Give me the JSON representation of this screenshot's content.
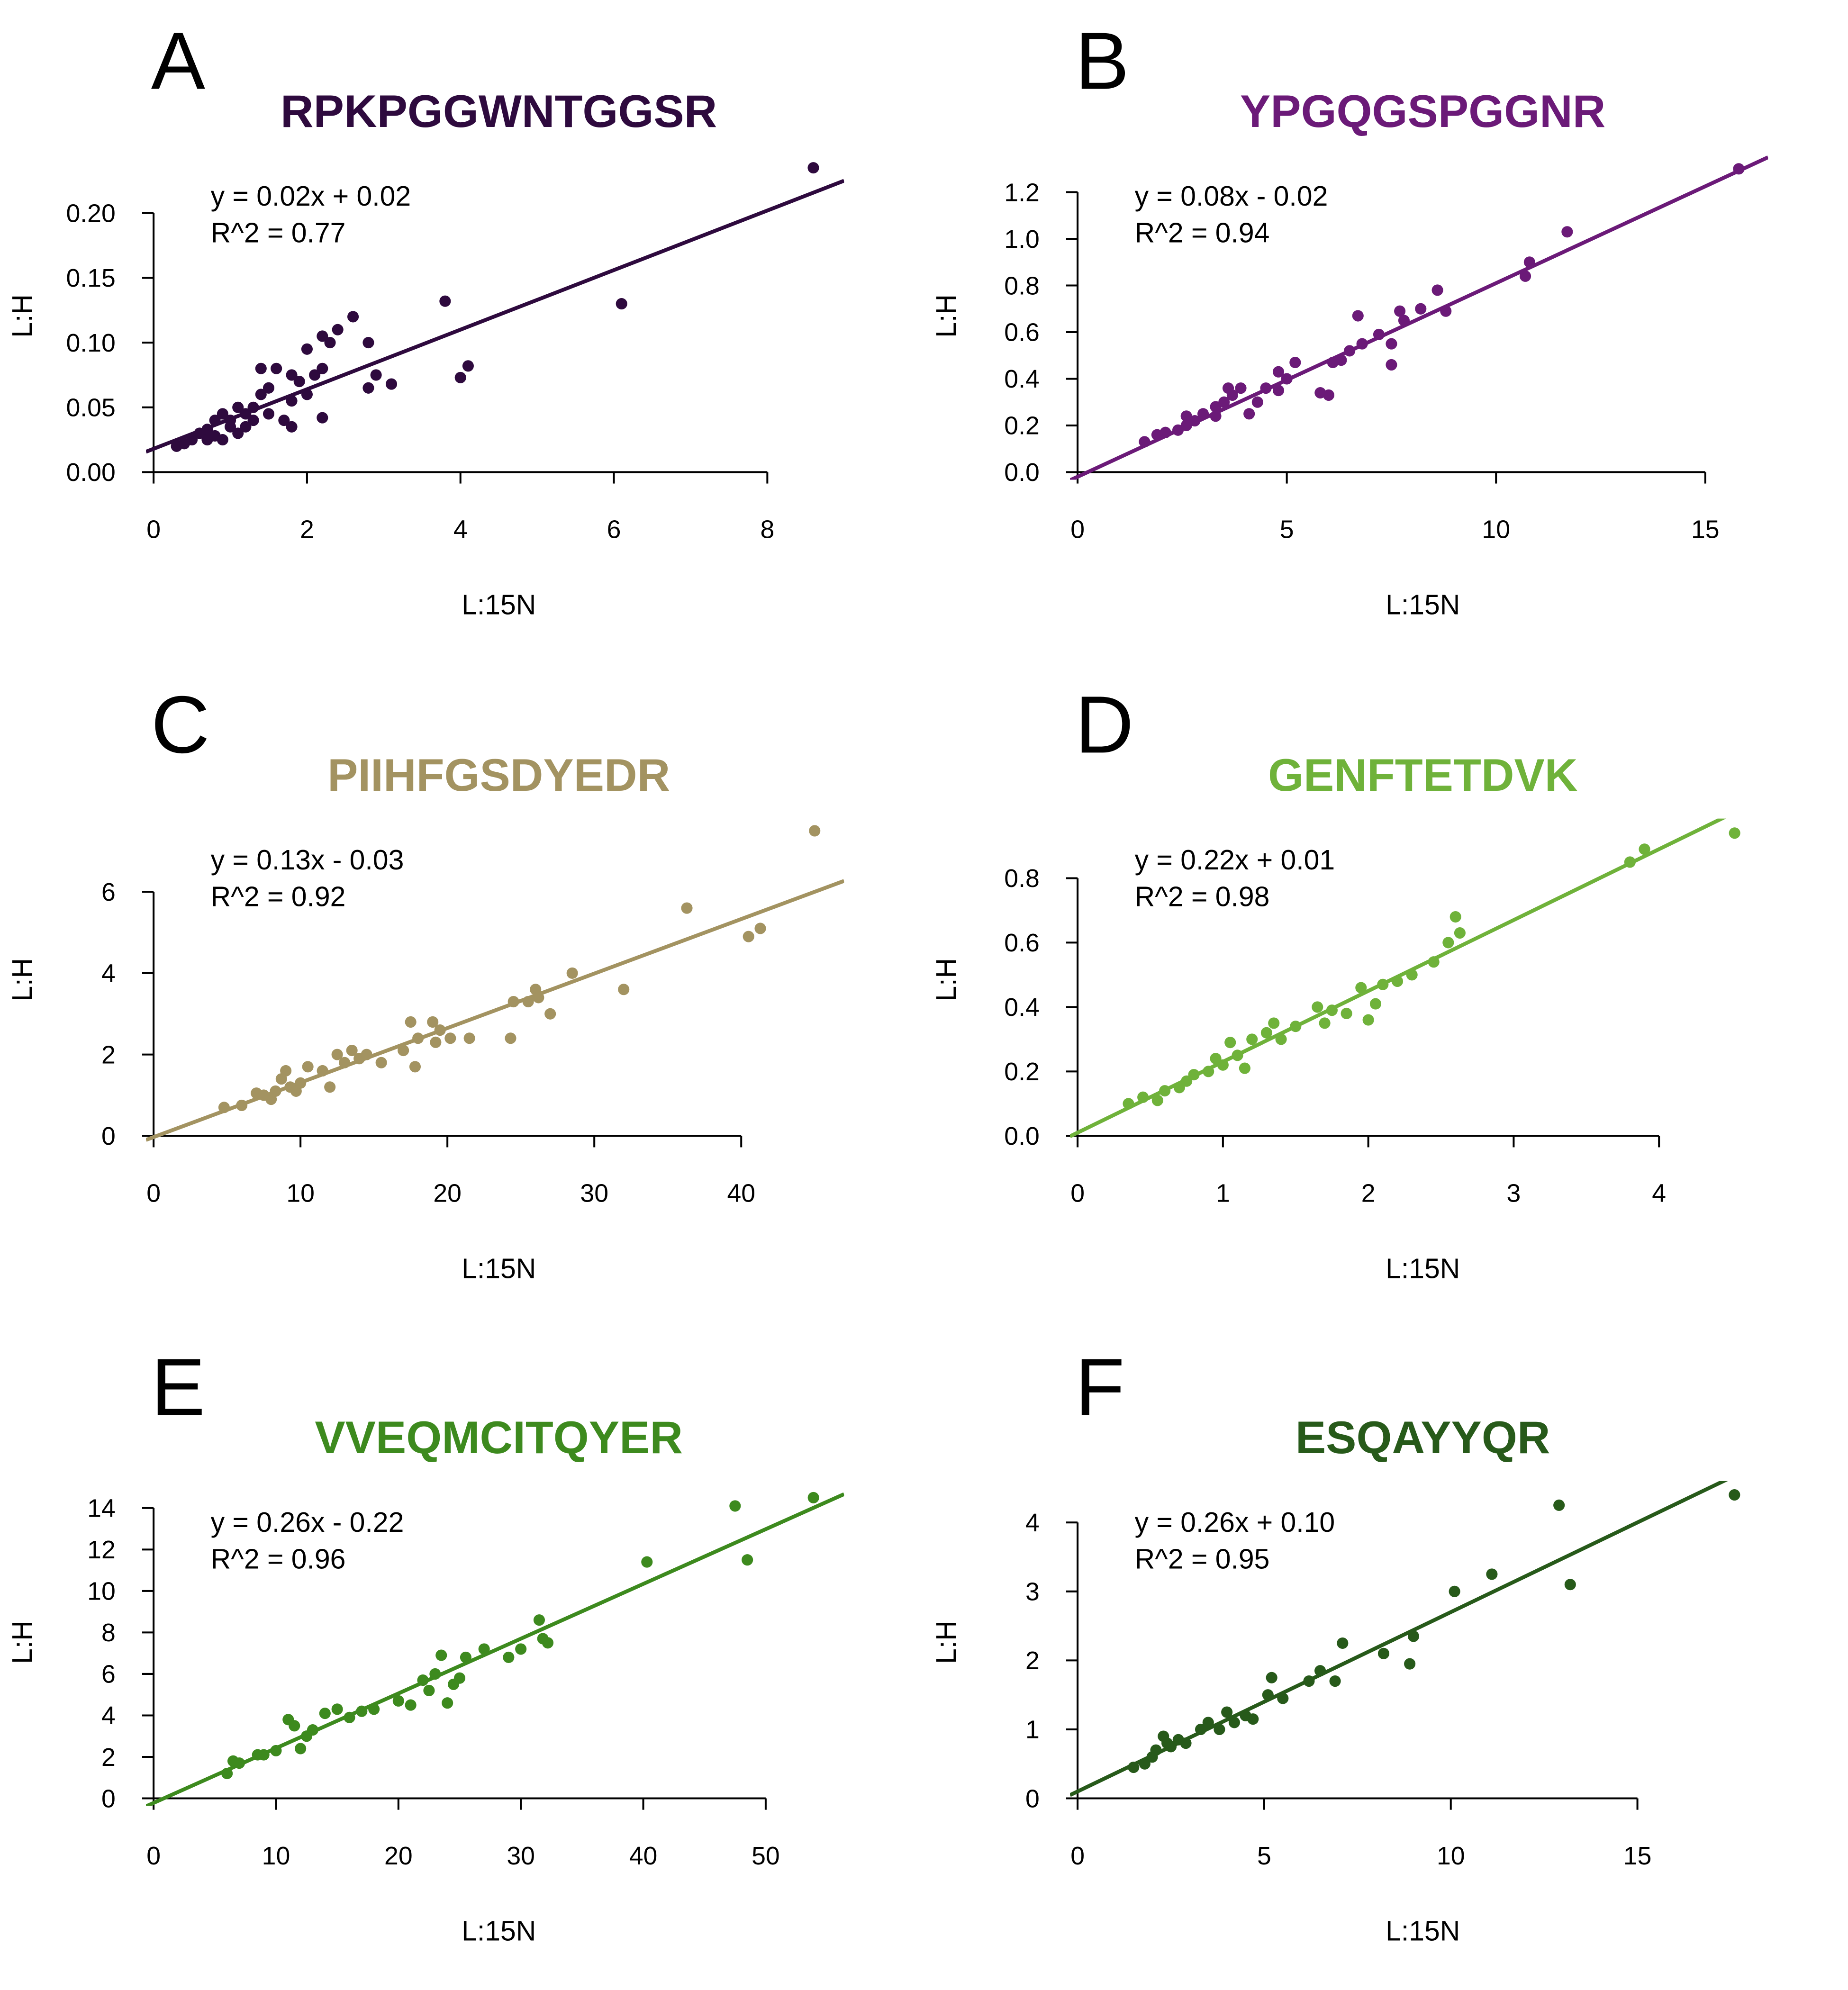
{
  "chart_data": [
    {
      "type": "scatter",
      "panel": "A",
      "title": "RPKPGGWNTGGSR",
      "equation": "y = 0.02x + 0.02",
      "r_squared": "R^2 = 0.77",
      "x_label": "L:15N",
      "y_label": "L:H",
      "color": "#2e0a3e",
      "fit": {
        "slope": 0.023,
        "intercept": 0.018
      },
      "x": [
        0.3,
        0.4,
        0.5,
        0.6,
        0.7,
        0.7,
        0.8,
        0.8,
        0.9,
        0.9,
        1.0,
        1.0,
        1.1,
        1.1,
        1.2,
        1.2,
        1.3,
        1.3,
        1.4,
        1.4,
        1.5,
        1.5,
        1.6,
        1.7,
        1.8,
        1.8,
        1.8,
        1.9,
        2.0,
        2.0,
        2.1,
        2.2,
        2.2,
        2.2,
        2.3,
        2.4,
        2.6,
        2.8,
        2.8,
        2.9,
        3.1,
        3.8,
        4.0,
        4.1,
        6.1,
        8.6
      ],
      "values": [
        0.02,
        0.022,
        0.025,
        0.03,
        0.025,
        0.033,
        0.04,
        0.028,
        0.045,
        0.025,
        0.035,
        0.04,
        0.05,
        0.03,
        0.045,
        0.035,
        0.05,
        0.04,
        0.08,
        0.06,
        0.065,
        0.045,
        0.08,
        0.04,
        0.055,
        0.075,
        0.035,
        0.07,
        0.095,
        0.06,
        0.075,
        0.105,
        0.08,
        0.042,
        0.1,
        0.11,
        0.12,
        0.1,
        0.065,
        0.075,
        0.068,
        0.132,
        0.073,
        0.082,
        0.13,
        0.235
      ],
      "xlim": [
        0,
        9
      ],
      "ylim": [
        0,
        0.245
      ],
      "xticks": [
        0,
        2,
        4,
        6,
        8
      ],
      "yticks": [
        {
          "value": 0,
          "label": "0.00"
        },
        0.05,
        {
          "value": 0.1,
          "label": "0.10"
        },
        0.15,
        {
          "value": 0.2,
          "label": "0.20"
        }
      ]
    },
    {
      "type": "scatter",
      "panel": "B",
      "title": "YPGQGSPGGNR",
      "equation": "y = 0.08x - 0.02",
      "r_squared": "R^2 = 0.94",
      "x_label": "L:15N",
      "y_label": "L:H",
      "color": "#6b1a78",
      "fit": {
        "slope": 0.083,
        "intercept": -0.02
      },
      "x": [
        1.6,
        1.9,
        2.1,
        2.4,
        2.6,
        2.6,
        2.8,
        3.0,
        3.3,
        3.3,
        3.5,
        3.6,
        3.7,
        3.9,
        4.1,
        4.3,
        4.5,
        4.8,
        4.8,
        5.0,
        5.2,
        5.8,
        6.0,
        6.1,
        6.3,
        6.5,
        6.7,
        6.8,
        7.2,
        7.5,
        7.5,
        7.7,
        7.8,
        8.2,
        8.6,
        8.8,
        10.7,
        10.8,
        11.7,
        15.8
      ],
      "values": [
        0.13,
        0.16,
        0.17,
        0.18,
        0.24,
        0.2,
        0.22,
        0.25,
        0.28,
        0.24,
        0.3,
        0.36,
        0.33,
        0.36,
        0.25,
        0.3,
        0.36,
        0.43,
        0.35,
        0.4,
        0.47,
        0.34,
        0.33,
        0.47,
        0.48,
        0.52,
        0.67,
        0.55,
        0.59,
        0.55,
        0.46,
        0.69,
        0.65,
        0.7,
        0.78,
        0.69,
        0.84,
        0.9,
        1.03,
        1.3
      ],
      "xlim": [
        0,
        16.5
      ],
      "ylim": [
        0,
        1.36
      ],
      "xticks": [
        0,
        5,
        10,
        15
      ],
      "yticks": [
        {
          "value": 0,
          "label": "0.0"
        },
        0.2,
        0.4,
        0.6,
        0.8,
        {
          "value": 1,
          "label": "1.0"
        },
        1.2
      ]
    },
    {
      "type": "scatter",
      "panel": "C",
      "title": "PIIHFGSDYEDR",
      "equation": "y = 0.13x - 0.03",
      "r_squared": "R^2 = 0.92",
      "x_label": "L:15N",
      "y_label": "L:H",
      "color": "#a39361",
      "fit": {
        "slope": 0.134,
        "intercept": -0.03
      },
      "x": [
        4.8,
        6,
        7,
        7.5,
        8,
        8.3,
        8.7,
        9,
        9.3,
        9.7,
        10,
        10.5,
        11.5,
        12,
        12.5,
        13,
        13.5,
        14,
        14.5,
        15.5,
        17,
        17.5,
        17.8,
        18,
        19,
        19.2,
        19.5,
        20.2,
        21.5,
        24.3,
        24.5,
        25.5,
        26,
        26.2,
        27,
        28.5,
        32,
        36.3,
        40.5,
        41.3,
        45
      ],
      "values": [
        0.7,
        0.75,
        1.05,
        1.0,
        0.9,
        1.1,
        1.4,
        1.6,
        1.2,
        1.1,
        1.3,
        1.7,
        1.6,
        1.2,
        2.0,
        1.8,
        2.1,
        1.9,
        2.0,
        1.8,
        2.1,
        2.8,
        1.7,
        2.4,
        2.8,
        2.3,
        2.6,
        2.4,
        2.4,
        2.4,
        3.3,
        3.3,
        3.6,
        3.4,
        3.0,
        4.0,
        3.6,
        5.6,
        4.9,
        5.1,
        7.5
      ],
      "xlim": [
        0,
        47
      ],
      "ylim": [
        0,
        7.8
      ],
      "xticks": [
        0,
        10,
        20,
        30,
        40
      ],
      "yticks": [
        0,
        2,
        4,
        6
      ]
    },
    {
      "type": "scatter",
      "panel": "D",
      "title": "GENFTETDVK",
      "equation": "y = 0.22x + 0.01",
      "r_squared": "R^2 = 0.98",
      "x_label": "L:15N",
      "y_label": "L:H",
      "color": "#6fb23a",
      "fit": {
        "slope": 0.22,
        "intercept": 0.01
      },
      "x": [
        0.35,
        0.45,
        0.55,
        0.6,
        0.7,
        0.75,
        0.8,
        0.9,
        0.95,
        1.0,
        1.05,
        1.1,
        1.15,
        1.2,
        1.3,
        1.35,
        1.4,
        1.5,
        1.65,
        1.7,
        1.75,
        1.85,
        1.95,
        2.0,
        2.05,
        2.1,
        2.2,
        2.3,
        2.45,
        2.55,
        2.6,
        2.63,
        3.8,
        3.9,
        4.52
      ],
      "values": [
        0.1,
        0.12,
        0.11,
        0.14,
        0.15,
        0.17,
        0.19,
        0.2,
        0.24,
        0.22,
        0.29,
        0.25,
        0.21,
        0.3,
        0.32,
        0.35,
        0.3,
        0.34,
        0.4,
        0.35,
        0.39,
        0.38,
        0.46,
        0.36,
        0.41,
        0.47,
        0.48,
        0.5,
        0.54,
        0.6,
        0.68,
        0.63,
        0.85,
        0.89,
        0.94
      ],
      "xlim": [
        0,
        4.75
      ],
      "ylim": [
        0,
        0.985
      ],
      "xticks": [
        0,
        1,
        2,
        3,
        4
      ],
      "yticks": [
        {
          "value": 0,
          "label": "0.0"
        },
        0.2,
        0.4,
        0.6,
        0.8
      ]
    },
    {
      "type": "scatter",
      "panel": "E",
      "title": "VVEQMCITQYER",
      "equation": "y = 0.26x - 0.22",
      "r_squared": "R^2 = 0.96",
      "x_label": "L:15N",
      "y_label": "L:H",
      "color": "#3d8a1e",
      "fit": {
        "slope": 0.264,
        "intercept": -0.22
      },
      "x": [
        6,
        6.5,
        7,
        8.5,
        9,
        10,
        11,
        11.5,
        12,
        12.5,
        13,
        14,
        15,
        16,
        17,
        18,
        20,
        21,
        22,
        22.5,
        23,
        23.5,
        24,
        24.5,
        25,
        25.5,
        27,
        29,
        30,
        31.5,
        31.8,
        32.2,
        40.3,
        47.5,
        48.5,
        53.9
      ],
      "values": [
        1.2,
        1.8,
        1.7,
        2.1,
        2.1,
        2.3,
        3.8,
        3.5,
        2.4,
        3.0,
        3.3,
        4.1,
        4.3,
        3.9,
        4.2,
        4.3,
        4.7,
        4.5,
        5.7,
        5.2,
        6.0,
        6.9,
        4.6,
        5.5,
        5.8,
        6.8,
        7.2,
        6.8,
        7.2,
        8.6,
        7.7,
        7.5,
        11.4,
        14.1,
        11.5,
        14.5
      ],
      "xlim": [
        0,
        56.4
      ],
      "ylim": [
        0,
        15.3
      ],
      "xticks": [
        0,
        10,
        20,
        30,
        40,
        50
      ],
      "yticks": [
        0,
        2,
        4,
        6,
        8,
        10,
        12,
        14
      ]
    },
    {
      "type": "scatter",
      "panel": "F",
      "title": "ESQAYYQR",
      "equation": "y = 0.26x + 0.10",
      "r_squared": "R^2 = 0.95",
      "x_label": "L:15N",
      "y_label": "L:H",
      "color": "#275a1a",
      "fit": {
        "slope": 0.26,
        "intercept": 0.1
      },
      "x": [
        1.5,
        1.8,
        2.0,
        2.1,
        2.3,
        2.4,
        2.5,
        2.7,
        2.9,
        3.3,
        3.5,
        3.8,
        4.0,
        4.2,
        4.5,
        4.7,
        5.1,
        5.2,
        5.5,
        6.2,
        6.5,
        6.9,
        7.1,
        8.2,
        8.9,
        9.0,
        10.1,
        11.1,
        12.9,
        13.2,
        17.6
      ],
      "values": [
        0.45,
        0.5,
        0.6,
        0.7,
        0.9,
        0.8,
        0.75,
        0.85,
        0.8,
        1.0,
        1.1,
        1.0,
        1.25,
        1.1,
        1.2,
        1.15,
        1.5,
        1.75,
        1.45,
        1.7,
        1.85,
        1.7,
        2.25,
        2.1,
        1.95,
        2.35,
        3.0,
        3.25,
        4.25,
        3.1,
        4.4
      ],
      "xlim": [
        0,
        18.5
      ],
      "ylim": [
        0,
        4.6
      ],
      "xticks": [
        0,
        5,
        10,
        15
      ],
      "yticks": [
        0,
        1,
        2,
        3,
        4
      ]
    }
  ]
}
